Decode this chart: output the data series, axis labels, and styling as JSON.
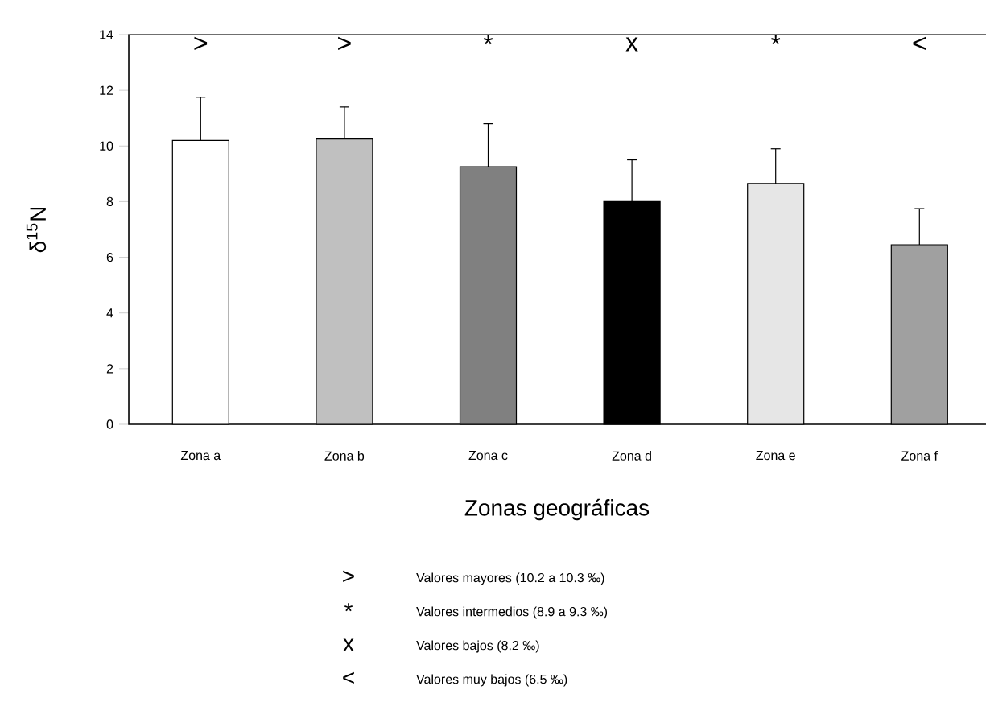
{
  "chart_data": {
    "type": "bar",
    "ylabel": "δ$^{15}$N",
    "xlabel": "Zonas geográficas",
    "categories": [
      "Zona a",
      "Zona b",
      "Zona c",
      "Zona d",
      "Zona e",
      "Zona f"
    ],
    "values": [
      10.2,
      10.25,
      9.25,
      8.0,
      8.65,
      6.45
    ],
    "errors": [
      [
        10.2,
        11.75
      ],
      [
        10.25,
        11.4
      ],
      [
        9.25,
        10.8
      ],
      [
        8.0,
        9.5
      ],
      [
        8.65,
        9.9
      ],
      [
        6.45,
        7.75
      ]
    ],
    "colors": [
      "#ffffff",
      "#c0c0c0",
      "#808080",
      "#000000",
      "#e6e6e6",
      "#a0a0a0"
    ],
    "ylim": [
      0,
      14
    ],
    "yticks": [
      0,
      2,
      4,
      6,
      8,
      10,
      12,
      14
    ],
    "annotations": [
      ">",
      ">",
      "*",
      "x",
      "*",
      "<",
      ">",
      "Valores mayores (10.2 a 10.3 ‰)",
      "*",
      "Valores intermedios (8.9 a 9.3 ‰)",
      "x",
      "Valores bajos (8.2 ‰)",
      "<",
      "Valores muy bajos (6.5 ‰)"
    ]
  }
}
